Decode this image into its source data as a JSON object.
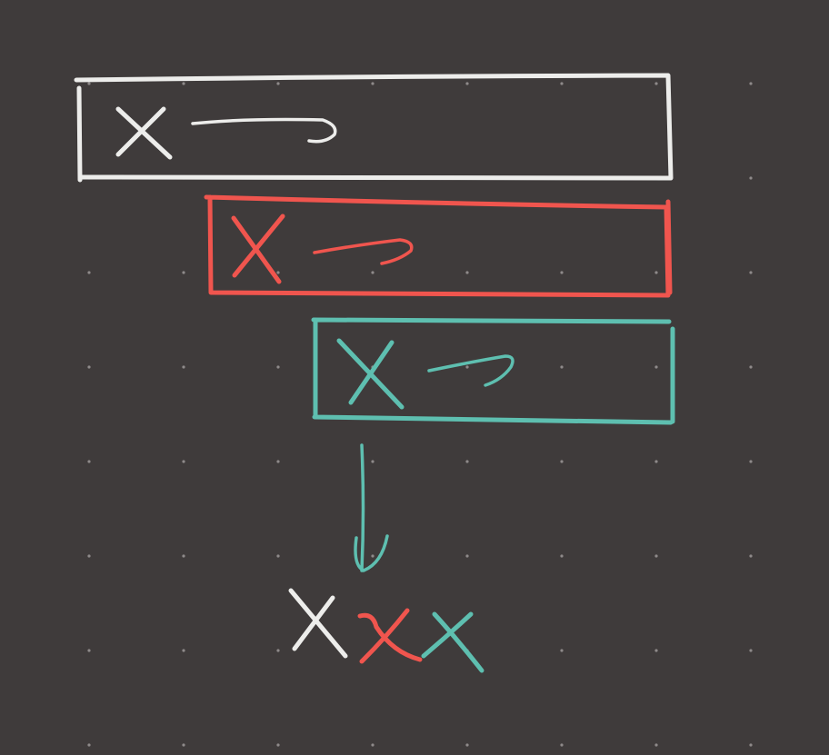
{
  "canvas": {
    "background": "#3f3b3b",
    "grid_dots": true,
    "dot_color": "#8e8a8a"
  },
  "colors": {
    "white": "#ededeb",
    "red": "#f0554e",
    "teal": "#5ebfb0"
  },
  "rows": [
    {
      "letter": "X",
      "color_key": "white",
      "arrow": "long-right-arrow"
    },
    {
      "letter": "X",
      "color_key": "red",
      "arrow": "medium-right-arrow"
    },
    {
      "letter": "X",
      "color_key": "teal",
      "arrow": "short-right-arrow"
    }
  ],
  "connector": {
    "color_key": "teal",
    "direction": "down",
    "icon": "down-arrow"
  },
  "result": {
    "letters": [
      {
        "letter": "X",
        "color_key": "white"
      },
      {
        "letter": "X",
        "color_key": "red"
      },
      {
        "letter": "X",
        "color_key": "teal"
      }
    ]
  }
}
